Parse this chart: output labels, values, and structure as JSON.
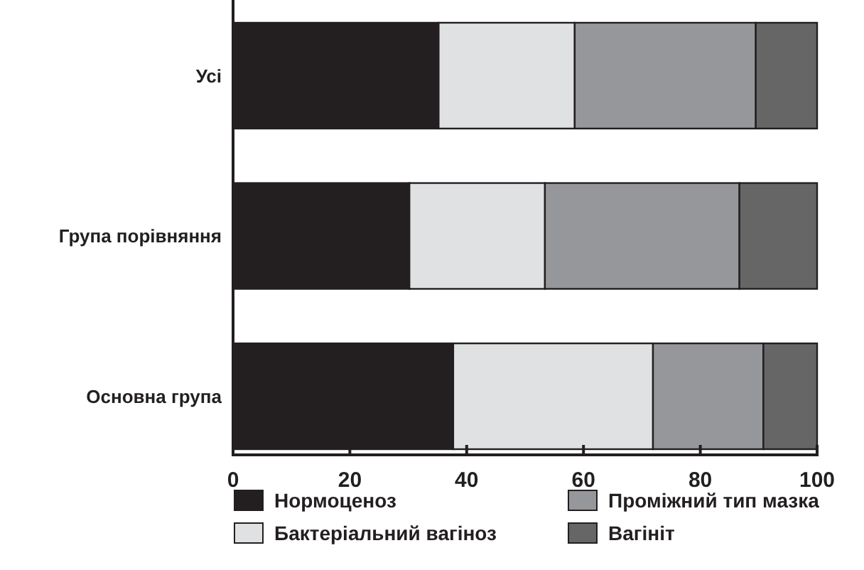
{
  "chart_data": {
    "type": "bar",
    "orientation": "horizontal",
    "stacked": true,
    "categories": [
      "Усі",
      "Група порівняння",
      "Основна група"
    ],
    "series": [
      {
        "name": "Нормоценоз",
        "color": "#231f20",
        "values": [
          35.2,
          30.2,
          37.7
        ]
      },
      {
        "name": "Бактеріальний вагіноз",
        "color": "#e0e1e3",
        "values": [
          23.3,
          23.2,
          34.2
        ]
      },
      {
        "name": "Проміжний тип мазка",
        "color": "#96979a",
        "values": [
          31.0,
          33.3,
          18.9
        ]
      },
      {
        "name": "Вагініт",
        "color": "#666666",
        "values": [
          10.5,
          13.3,
          9.2
        ]
      }
    ],
    "xlim": [
      0,
      100
    ],
    "xticks": [
      0,
      20,
      40,
      60,
      80,
      100
    ],
    "grid": false,
    "legend": "bottom"
  }
}
